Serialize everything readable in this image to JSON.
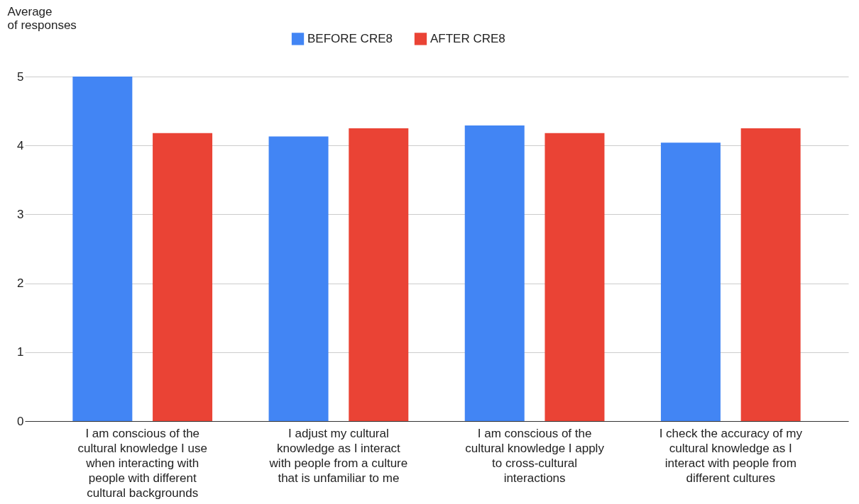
{
  "chart_data": {
    "type": "bar",
    "ylabel": "Average of responses",
    "categories": [
      "I am conscious of the cultural knowledge I use when interacting with people with different cultural backgrounds",
      "I adjust my cultural knowledge as I interact with people from a culture that is unfamiliar to me",
      "I am conscious of the cultural knowledge I apply to cross-cultural interactions",
      "I check the accuracy of my cultural knowledge as I interact with people from different cultures"
    ],
    "series": [
      {
        "name": "BEFORE CRE8",
        "color": "#4285f4",
        "values": [
          5.0,
          4.13,
          4.29,
          4.04
        ]
      },
      {
        "name": "AFTER CRE8",
        "color": "#ea4335",
        "values": [
          4.18,
          4.25,
          4.18,
          4.25
        ]
      }
    ],
    "ylim": [
      0,
      5
    ],
    "yticks": [
      0,
      1,
      2,
      3,
      4,
      5
    ],
    "grid": "y",
    "legend": "top"
  }
}
